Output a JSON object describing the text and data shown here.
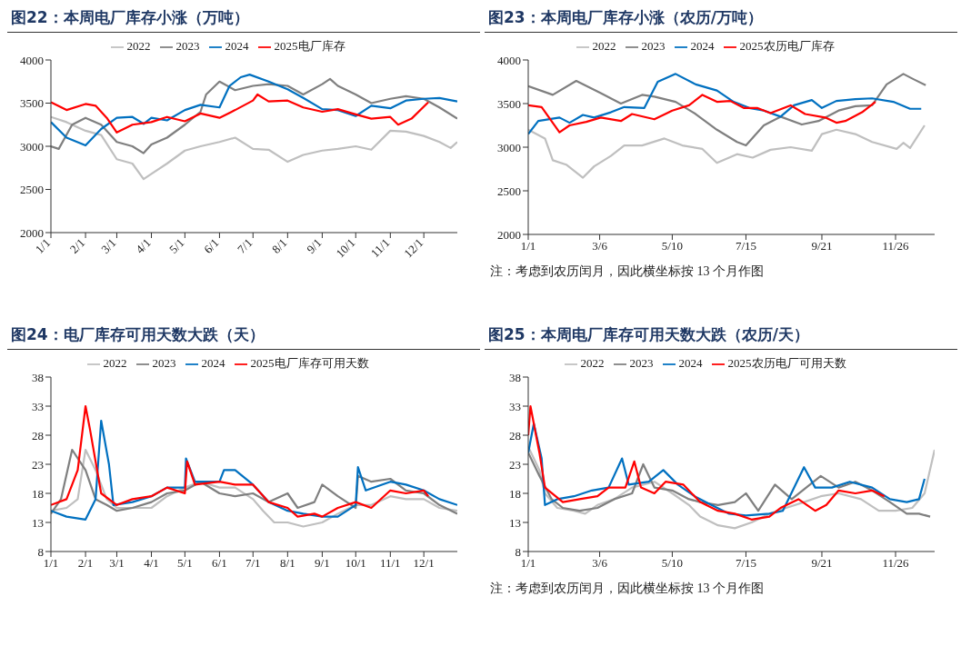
{
  "chart_data": [
    {
      "type": "line",
      "title": "图22：本周电厂库存小涨（万吨）",
      "legend": "top",
      "marker": "none",
      "xlim": [
        "--01-01",
        "--12-31"
      ],
      "xticks": [
        {
          "value": "--01-01",
          "label": "1/1"
        },
        {
          "value": "--02-01",
          "label": "2/1"
        },
        {
          "value": "--03-01",
          "label": "3/1"
        },
        {
          "value": "--04-01",
          "label": "4/1"
        },
        {
          "value": "--05-01",
          "label": "5/1"
        },
        {
          "value": "--06-01",
          "label": "6/1"
        },
        {
          "value": "--07-01",
          "label": "7/1"
        },
        {
          "value": "--08-01",
          "label": "8/1"
        },
        {
          "value": "--09-01",
          "label": "9/1"
        },
        {
          "value": "--10-01",
          "label": "10/1"
        },
        {
          "value": "--11-01",
          "label": "11/1"
        },
        {
          "value": "--12-01",
          "label": "12/1"
        }
      ],
      "ylim": [
        2000,
        4000
      ],
      "yticks": [
        2000,
        2500,
        3000,
        3500,
        4000
      ],
      "series": [
        {
          "name": "2022",
          "color": "#bfbfbf",
          "x": [
            "--01-01",
            "--01-15",
            "--02-01",
            "--02-15",
            "--03-01",
            "--03-15",
            "--03-25",
            "--04-01",
            "--04-15",
            "--05-01",
            "--05-15",
            "--06-01",
            "--06-15",
            "--07-01",
            "--07-15",
            "--08-01",
            "--08-15",
            "--09-01",
            "--09-15",
            "--10-01",
            "--10-15",
            "--11-01",
            "--11-15",
            "--12-01",
            "--12-15",
            "--12-25",
            "--12-31"
          ],
          "values": [
            3340,
            3280,
            3180,
            3130,
            2850,
            2800,
            2620,
            2680,
            2800,
            2950,
            3000,
            3050,
            3100,
            2970,
            2960,
            2820,
            2900,
            2950,
            2970,
            3000,
            2960,
            3180,
            3170,
            3120,
            3050,
            2980,
            3050
          ]
        },
        {
          "name": "2023",
          "color": "#7f7f7f",
          "x": [
            "--01-01",
            "--01-08",
            "--01-20",
            "--02-01",
            "--02-15",
            "--03-01",
            "--03-15",
            "--03-25",
            "--04-01",
            "--04-15",
            "--05-01",
            "--05-15",
            "--05-20",
            "--06-01",
            "--06-15",
            "--07-01",
            "--07-15",
            "--08-01",
            "--08-15",
            "--09-01",
            "--09-08",
            "--09-15",
            "--10-01",
            "--10-15",
            "--11-01",
            "--11-15",
            "--12-01",
            "--12-15",
            "--12-31"
          ],
          "values": [
            3000,
            2970,
            3250,
            3330,
            3250,
            3050,
            3000,
            2920,
            3020,
            3100,
            3250,
            3400,
            3600,
            3750,
            3650,
            3700,
            3720,
            3700,
            3600,
            3720,
            3780,
            3700,
            3600,
            3500,
            3550,
            3580,
            3550,
            3450,
            3320
          ]
        },
        {
          "name": "2024",
          "color": "#0070c0",
          "x": [
            "--01-01",
            "--01-15",
            "--02-01",
            "--02-15",
            "--03-01",
            "--03-15",
            "--03-25",
            "--04-01",
            "--04-15",
            "--05-01",
            "--05-15",
            "--06-01",
            "--06-10",
            "--06-20",
            "--06-28",
            "--07-15",
            "--08-01",
            "--08-15",
            "--09-01",
            "--09-15",
            "--10-01",
            "--10-15",
            "--11-01",
            "--11-15",
            "--12-01",
            "--12-15",
            "--12-31"
          ],
          "values": [
            3280,
            3100,
            3010,
            3200,
            3330,
            3340,
            3260,
            3330,
            3300,
            3420,
            3480,
            3450,
            3700,
            3800,
            3830,
            3750,
            3660,
            3560,
            3430,
            3420,
            3350,
            3470,
            3440,
            3530,
            3550,
            3560,
            3520
          ]
        },
        {
          "name": "2025电厂库存",
          "color": "#ff0000",
          "x": [
            "--01-01",
            "--01-15",
            "--02-01",
            "--02-10",
            "--02-20",
            "--03-01",
            "--03-15",
            "--04-01",
            "--04-15",
            "--05-01",
            "--05-15",
            "--06-01",
            "--06-15",
            "--07-01",
            "--07-05",
            "--07-15",
            "--08-01",
            "--08-15",
            "--09-01",
            "--09-15",
            "--10-01",
            "--10-15",
            "--11-01",
            "--11-08",
            "--11-20",
            "--12-05"
          ],
          "values": [
            3510,
            3420,
            3490,
            3470,
            3330,
            3160,
            3250,
            3280,
            3340,
            3290,
            3380,
            3330,
            3420,
            3530,
            3600,
            3520,
            3530,
            3450,
            3400,
            3430,
            3370,
            3320,
            3340,
            3250,
            3320,
            3510
          ]
        }
      ]
    },
    {
      "type": "line",
      "title": "图23：本周电厂库存小涨（农历/万吨）",
      "legend": "top",
      "marker": "none",
      "annotations": [
        "注：考虑到农历闰月，因此横坐标按 13 个月作图"
      ],
      "xlim": [
        "--01-01",
        "--12-31"
      ],
      "xticks": [
        {
          "value": "--01-01",
          "label": "1/1"
        },
        {
          "value": "--03-06",
          "label": "3/6"
        },
        {
          "value": "--05-10",
          "label": "5/10"
        },
        {
          "value": "--07-15",
          "label": "7/15"
        },
        {
          "value": "--09-21",
          "label": "9/21"
        },
        {
          "value": "--11-26",
          "label": "11/26"
        }
      ],
      "ylim": [
        2000,
        4000
      ],
      "yticks": [
        2000,
        2500,
        3000,
        3500,
        4000
      ],
      "series": [
        {
          "name": "2022",
          "color": "#bfbfbf",
          "x": [
            "--01-01",
            "--01-16",
            "--01-23",
            "--02-04",
            "--02-19",
            "--03-01",
            "--03-16",
            "--03-28",
            "--04-13",
            "--05-03",
            "--05-19",
            "--06-06",
            "--06-19",
            "--07-07",
            "--07-21",
            "--08-06",
            "--08-24",
            "--09-12",
            "--09-21",
            "--10-04",
            "--10-21",
            "--11-05",
            "--11-27",
            "--12-03",
            "--12-09",
            "--12-22"
          ],
          "values": [
            3200,
            3100,
            2850,
            2800,
            2650,
            2780,
            2900,
            3020,
            3020,
            3100,
            3020,
            2980,
            2820,
            2920,
            2880,
            2970,
            3000,
            2960,
            3150,
            3200,
            3150,
            3060,
            2980,
            3050,
            2990,
            3250
          ]
        },
        {
          "name": "2023",
          "color": "#7f7f7f",
          "x": [
            "--01-01",
            "--01-23",
            "--02-13",
            "--03-07",
            "--03-25",
            "--04-13",
            "--04-24",
            "--05-13",
            "--05-31",
            "--06-19",
            "--07-07",
            "--07-15",
            "--07-31",
            "--08-15",
            "--09-03",
            "--09-18",
            "--10-06",
            "--10-21",
            "--11-05",
            "--11-18",
            "--12-03",
            "--12-12",
            "--12-23"
          ],
          "values": [
            3700,
            3600,
            3760,
            3620,
            3500,
            3600,
            3580,
            3520,
            3380,
            3200,
            3060,
            3020,
            3250,
            3350,
            3260,
            3300,
            3420,
            3470,
            3480,
            3720,
            3840,
            3780,
            3710
          ]
        },
        {
          "name": "2024",
          "color": "#0070c0",
          "x": [
            "--01-01",
            "--01-10",
            "--01-29",
            "--02-07",
            "--02-19",
            "--03-01",
            "--03-16",
            "--03-28",
            "--04-15",
            "--04-27",
            "--05-13",
            "--05-31",
            "--06-19",
            "--07-04",
            "--07-18",
            "--07-31",
            "--08-15",
            "--08-27",
            "--09-12",
            "--09-21",
            "--10-04",
            "--10-21",
            "--11-05",
            "--11-24",
            "--12-09",
            "--12-19"
          ],
          "values": [
            3150,
            3300,
            3340,
            3280,
            3370,
            3340,
            3400,
            3460,
            3450,
            3750,
            3840,
            3720,
            3650,
            3520,
            3450,
            3420,
            3350,
            3480,
            3540,
            3450,
            3530,
            3550,
            3560,
            3520,
            3440,
            3440
          ]
        },
        {
          "name": "2025农历电厂库存",
          "color": "#ff0000",
          "x": [
            "--01-01",
            "--01-13",
            "--01-29",
            "--02-07",
            "--02-22",
            "--03-07",
            "--03-25",
            "--04-04",
            "--04-24",
            "--05-10",
            "--05-25",
            "--06-06",
            "--06-19",
            "--07-01",
            "--07-13",
            "--07-25",
            "--08-06",
            "--08-24",
            "--09-06",
            "--09-24",
            "--10-04",
            "--10-12",
            "--10-27",
            "--11-08"
          ],
          "values": [
            3480,
            3460,
            3170,
            3250,
            3290,
            3340,
            3300,
            3380,
            3320,
            3420,
            3480,
            3600,
            3520,
            3530,
            3450,
            3450,
            3390,
            3480,
            3380,
            3340,
            3280,
            3300,
            3400,
            3520
          ]
        }
      ]
    },
    {
      "type": "line",
      "title": "图24：电厂库存可用天数大跌（天）",
      "legend": "top",
      "marker": "none",
      "xlim": [
        "--01-01",
        "--12-31"
      ],
      "xticks": [
        {
          "value": "--01-01",
          "label": "1/1"
        },
        {
          "value": "--02-01",
          "label": "2/1"
        },
        {
          "value": "--03-01",
          "label": "3/1"
        },
        {
          "value": "--04-01",
          "label": "4/1"
        },
        {
          "value": "--05-01",
          "label": "5/1"
        },
        {
          "value": "--06-01",
          "label": "6/1"
        },
        {
          "value": "--07-01",
          "label": "7/1"
        },
        {
          "value": "--08-01",
          "label": "8/1"
        },
        {
          "value": "--09-01",
          "label": "9/1"
        },
        {
          "value": "--10-01",
          "label": "10/1"
        },
        {
          "value": "--11-01",
          "label": "11/1"
        },
        {
          "value": "--12-01",
          "label": "12/1"
        }
      ],
      "ylim": [
        8,
        38
      ],
      "yticks": [
        8,
        13,
        18,
        23,
        28,
        33,
        38
      ],
      "series": [
        {
          "name": "2022",
          "color": "#bfbfbf",
          "x": [
            "--01-01",
            "--01-15",
            "--01-25",
            "--02-01",
            "--02-10",
            "--02-20",
            "--03-01",
            "--03-15",
            "--04-01",
            "--04-15",
            "--05-01",
            "--05-15",
            "--06-01",
            "--06-15",
            "--07-01",
            "--07-10",
            "--07-20",
            "--08-01",
            "--08-15",
            "--09-01",
            "--09-15",
            "--10-01",
            "--10-15",
            "--11-01",
            "--11-15",
            "--12-01",
            "--12-15",
            "--12-31"
          ],
          "values": [
            15,
            15.5,
            17,
            25.5,
            22,
            17,
            15.5,
            15.5,
            15.5,
            17.5,
            19,
            20,
            19,
            19,
            17,
            15,
            13,
            13,
            12.3,
            13,
            14.5,
            16,
            16,
            17.5,
            17,
            17,
            15.5,
            15
          ]
        },
        {
          "name": "2023",
          "color": "#7f7f7f",
          "x": [
            "--01-01",
            "--01-10",
            "--01-20",
            "--02-01",
            "--02-10",
            "--02-20",
            "--03-01",
            "--03-15",
            "--04-01",
            "--04-15",
            "--05-01",
            "--05-15",
            "--06-01",
            "--06-15",
            "--07-01",
            "--07-15",
            "--08-01",
            "--08-10",
            "--08-25",
            "--09-01",
            "--09-15",
            "--10-01",
            "--10-03",
            "--10-15",
            "--11-01",
            "--11-15",
            "--12-01",
            "--12-15",
            "--12-31"
          ],
          "values": [
            14.5,
            17,
            25.5,
            22,
            17,
            16,
            15,
            15.5,
            16.5,
            18,
            18.5,
            20,
            18,
            17.5,
            18,
            16.5,
            18,
            15.5,
            16.5,
            19.5,
            17.5,
            15.5,
            21,
            20,
            20.5,
            18.5,
            18,
            16,
            14.5
          ]
        },
        {
          "name": "2024",
          "color": "#0070c0",
          "x": [
            "--01-01",
            "--01-15",
            "--02-01",
            "--02-10",
            "--02-15",
            "--02-22",
            "--02-26",
            "--03-15",
            "--04-01",
            "--04-15",
            "--05-01",
            "--05-02",
            "--05-10",
            "--06-01",
            "--06-05",
            "--06-15",
            "--07-01",
            "--07-15",
            "--08-01",
            "--08-15",
            "--09-01",
            "--09-15",
            "--10-01",
            "--10-03",
            "--10-10",
            "--11-01",
            "--11-15",
            "--12-01",
            "--12-15",
            "--12-31"
          ],
          "values": [
            15,
            14,
            13.5,
            17,
            30.5,
            23,
            16,
            16.5,
            17.5,
            19,
            19,
            24,
            20,
            20,
            22,
            22,
            19.5,
            16.5,
            15,
            14.5,
            14,
            14,
            16,
            22.5,
            18.5,
            20,
            19.5,
            18.5,
            17,
            16
          ]
        },
        {
          "name": "2025电厂库存可用天数",
          "color": "#ff0000",
          "x": [
            "--01-01",
            "--01-15",
            "--01-25",
            "--02-01",
            "--02-05",
            "--02-15",
            "--03-01",
            "--03-15",
            "--04-01",
            "--04-15",
            "--05-01",
            "--05-03",
            "--05-10",
            "--06-01",
            "--06-15",
            "--07-01",
            "--07-15",
            "--08-01",
            "--08-10",
            "--08-25",
            "--09-01",
            "--09-15",
            "--10-01",
            "--10-15",
            "--11-01",
            "--11-15",
            "--12-01",
            "--12-05"
          ],
          "values": [
            16,
            17,
            22,
            33,
            29,
            18,
            16,
            17,
            17.5,
            19,
            18,
            23.5,
            19.5,
            20,
            19.5,
            19.5,
            16.5,
            15.5,
            14,
            14.5,
            14,
            15.5,
            16.5,
            15.5,
            18.5,
            18,
            18.5,
            17.5
          ]
        }
      ]
    },
    {
      "type": "line",
      "title": "图25：本周电厂库存可用天数大跌（农历/天）",
      "legend": "top",
      "marker": "none",
      "annotations": [
        "注：考虑到农历闰月，因此横坐标按 13 个月作图"
      ],
      "xlim": [
        "--01-01",
        "--12-31"
      ],
      "xticks": [
        {
          "value": "--01-01",
          "label": "1/1"
        },
        {
          "value": "--03-06",
          "label": "3/6"
        },
        {
          "value": "--05-10",
          "label": "5/10"
        },
        {
          "value": "--07-15",
          "label": "7/15"
        },
        {
          "value": "--09-21",
          "label": "9/21"
        },
        {
          "value": "--11-26",
          "label": "11/26"
        }
      ],
      "ylim": [
        8,
        38
      ],
      "yticks": [
        8,
        13,
        18,
        23,
        28,
        33,
        38
      ],
      "series": [
        {
          "name": "2022",
          "color": "#bfbfbf",
          "x": [
            "--01-01",
            "--01-11",
            "--01-16",
            "--01-27",
            "--02-11",
            "--02-21",
            "--03-04",
            "--03-19",
            "--04-04",
            "--04-24",
            "--05-10",
            "--05-25",
            "--06-04",
            "--06-20",
            "--07-05",
            "--07-20",
            "--08-05",
            "--08-20",
            "--09-05",
            "--09-20",
            "--10-06",
            "--10-26",
            "--11-11",
            "--11-26",
            "--12-11",
            "--12-22",
            "--12-31"
          ],
          "values": [
            26,
            22,
            18,
            15.5,
            15,
            14.5,
            16,
            17,
            19,
            20,
            18,
            16,
            14,
            12.5,
            12,
            13,
            14.5,
            15.5,
            16.5,
            17.5,
            18,
            17,
            15,
            15,
            15.5,
            18,
            25.5
          ]
        },
        {
          "name": "2023",
          "color": "#7f7f7f",
          "x": [
            "--01-01",
            "--01-11",
            "--01-22",
            "--02-01",
            "--02-16",
            "--03-04",
            "--03-19",
            "--04-04",
            "--04-14",
            "--04-24",
            "--05-10",
            "--05-25",
            "--06-04",
            "--06-20",
            "--07-05",
            "--07-15",
            "--07-26",
            "--08-10",
            "--08-25",
            "--09-20",
            "--10-06",
            "--10-21",
            "--11-05",
            "--11-21",
            "--12-06",
            "--12-17",
            "--12-27"
          ],
          "values": [
            25,
            21,
            17,
            15.5,
            15,
            15.5,
            17,
            18,
            23,
            19,
            18.5,
            17,
            16.5,
            16,
            16.5,
            18,
            15,
            19.5,
            17,
            21,
            19,
            20,
            18.5,
            16.5,
            14.5,
            14.5,
            14
          ]
        },
        {
          "name": "2024",
          "color": "#0070c0",
          "x": [
            "--01-01",
            "--01-06",
            "--01-13",
            "--01-16",
            "--01-27",
            "--02-11",
            "--02-27",
            "--03-14",
            "--03-26",
            "--04-01",
            "--04-19",
            "--05-02",
            "--05-15",
            "--05-30",
            "--06-14",
            "--06-30",
            "--07-15",
            "--08-05",
            "--08-17",
            "--09-05",
            "--09-15",
            "--09-30",
            "--10-16",
            "--11-05",
            "--11-21",
            "--12-06",
            "--12-17",
            "--12-22"
          ],
          "values": [
            25,
            30,
            24,
            16,
            17,
            17.5,
            18.5,
            19,
            24,
            19.5,
            20,
            22,
            19.5,
            17.5,
            16,
            14.5,
            14.2,
            14.5,
            15,
            22.5,
            19,
            19,
            20,
            19,
            17,
            16.5,
            17,
            20.5
          ]
        },
        {
          "name": "2025农历电厂可用天数",
          "color": "#ff0000",
          "x": [
            "--01-01",
            "--01-03",
            "--01-11",
            "--01-16",
            "--02-01",
            "--02-16",
            "--03-04",
            "--03-14",
            "--03-29",
            "--04-06",
            "--04-12",
            "--04-24",
            "--05-04",
            "--05-20",
            "--06-04",
            "--06-20",
            "--07-05",
            "--07-20",
            "--08-05",
            "--08-15",
            "--08-31",
            "--09-15",
            "--09-25",
            "--10-06",
            "--10-21",
            "--11-05",
            "--11-16"
          ],
          "values": [
            28,
            33,
            25,
            19,
            16.5,
            17,
            17.5,
            19,
            19,
            23.5,
            19,
            18,
            20,
            19.5,
            16.5,
            15,
            14.5,
            13.5,
            14,
            15.5,
            17,
            15,
            16,
            18.5,
            18,
            18.5,
            17.5
          ]
        }
      ]
    }
  ]
}
